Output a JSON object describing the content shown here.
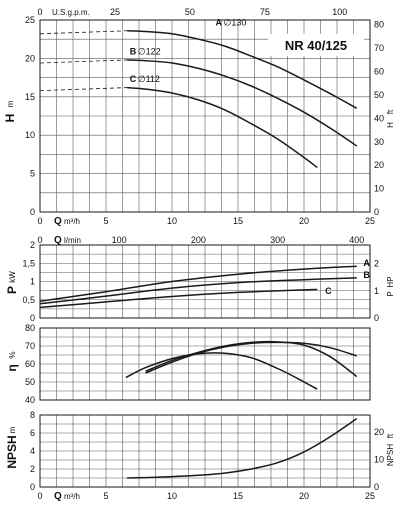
{
  "chart_data": [
    {
      "type": "line",
      "id": "head",
      "model_label": "NR 40/125",
      "ylabel": "H",
      "ylabel_unit": "m",
      "y2label": "H",
      "y2label_unit": "ft",
      "x_top_label": "U.S.g.p.m.",
      "x_top_ticks": [
        "0",
        "25",
        "50",
        "75",
        "100"
      ],
      "x_bottom_label": "Q",
      "x_bottom_unit": "m³/h",
      "x_ticks": [
        "0",
        "5",
        "10",
        "15",
        "20",
        "25"
      ],
      "y_ticks": [
        "0",
        "5",
        "10",
        "15",
        "20",
        "25"
      ],
      "y2_ticks": [
        "0",
        "10",
        "20",
        "30",
        "40",
        "50",
        "60",
        "70",
        "80"
      ],
      "xlim": [
        0,
        25
      ],
      "ylim": [
        0,
        25
      ],
      "series": [
        {
          "name": "A",
          "name_suffix": "∅130",
          "x": [
            6.6,
            8,
            10,
            12,
            14,
            16,
            18,
            20,
            22,
            24
          ],
          "y": [
            23.6,
            23.5,
            23.2,
            22.5,
            21.6,
            20.3,
            18.9,
            17.2,
            15.4,
            13.5
          ]
        },
        {
          "name": "B",
          "name_suffix": "∅122",
          "x": [
            6.6,
            8,
            10,
            12,
            14,
            16,
            18,
            20,
            22,
            24
          ],
          "y": [
            19.8,
            19.7,
            19.4,
            18.7,
            17.7,
            16.4,
            14.8,
            13.0,
            10.9,
            8.6
          ]
        },
        {
          "name": "C",
          "name_suffix": "∅112",
          "x": [
            6.6,
            8,
            10,
            12,
            14,
            16,
            18,
            20,
            21
          ],
          "y": [
            16.2,
            16.0,
            15.5,
            14.6,
            13.3,
            11.5,
            9.5,
            7.1,
            5.8
          ]
        }
      ]
    },
    {
      "type": "line",
      "id": "power",
      "ylabel": "P",
      "ylabel_unit": "kW",
      "y2label": "P",
      "y2label_unit": "HP",
      "x_top_label": "Q",
      "x_top_unit": "l/min",
      "x_top_ticks": [
        "0",
        "100",
        "200",
        "300",
        "400"
      ],
      "y_ticks": [
        "0",
        "0,5",
        "1",
        "1,5",
        "2"
      ],
      "y2_ticks": [
        "0",
        "1",
        "2"
      ],
      "xlim": [
        0,
        25
      ],
      "ylim": [
        0,
        2
      ],
      "series": [
        {
          "name": "A",
          "x": [
            0,
            5,
            10,
            15,
            20,
            24
          ],
          "y": [
            0.46,
            0.72,
            1.0,
            1.2,
            1.34,
            1.42
          ]
        },
        {
          "name": "B",
          "x": [
            0,
            5,
            10,
            15,
            20,
            24
          ],
          "y": [
            0.39,
            0.6,
            0.82,
            0.97,
            1.05,
            1.1
          ]
        },
        {
          "name": "C",
          "x": [
            0,
            5,
            10,
            15,
            20,
            21
          ],
          "y": [
            0.29,
            0.44,
            0.59,
            0.7,
            0.77,
            0.78
          ]
        }
      ]
    },
    {
      "type": "line",
      "id": "efficiency",
      "ylabel": "η",
      "ylabel_unit": "%",
      "y_ticks": [
        "40",
        "50",
        "60",
        "70",
        "80"
      ],
      "xlim": [
        0,
        25
      ],
      "ylim": [
        40,
        80
      ],
      "series": [
        {
          "name": "A",
          "x": [
            8,
            10,
            12,
            14,
            16,
            18,
            20,
            22,
            24
          ],
          "y": [
            55,
            61,
            66,
            69.5,
            71.5,
            72,
            71.5,
            69,
            64.5
          ]
        },
        {
          "name": "B",
          "x": [
            8,
            10,
            12,
            14,
            16,
            18,
            20,
            22,
            24
          ],
          "y": [
            56,
            62,
            66.5,
            70,
            72,
            72.3,
            70.5,
            64,
            53
          ]
        },
        {
          "name": "C",
          "x": [
            6.5,
            8,
            10,
            12,
            14,
            16,
            18,
            19.5,
            21
          ],
          "y": [
            52.5,
            58,
            63,
            65.7,
            66,
            63.5,
            57.5,
            52,
            46
          ]
        }
      ]
    },
    {
      "type": "line",
      "id": "npsh",
      "ylabel": "NPSH",
      "ylabel_unit": "m",
      "y2label": "NPSH",
      "y2label_unit": "ft",
      "x_bottom_label": "Q",
      "x_bottom_unit": "m³/h",
      "x_ticks": [
        "0",
        "5",
        "10",
        "15",
        "20",
        "25"
      ],
      "y_ticks": [
        "0",
        "2",
        "4",
        "6",
        "8"
      ],
      "y2_ticks": [
        "0",
        "10",
        "20"
      ],
      "xlim": [
        0,
        25
      ],
      "ylim": [
        0,
        8
      ],
      "series": [
        {
          "name": "",
          "x": [
            6.6,
            8,
            10,
            12,
            14,
            16,
            18,
            20,
            22,
            24
          ],
          "y": [
            1.0,
            1.05,
            1.15,
            1.3,
            1.55,
            2.0,
            2.7,
            3.9,
            5.6,
            7.6
          ]
        }
      ]
    }
  ]
}
